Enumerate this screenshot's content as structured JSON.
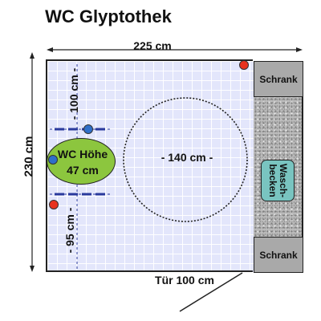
{
  "title": "WC Glyptothek",
  "dimensions": {
    "width": "225 cm",
    "height": "230 cm",
    "door": "Tür 100 cm",
    "turning_circle": "- 140 cm -",
    "clearance_top": "- 100 cm -",
    "clearance_bottom": "- 95 cm -"
  },
  "fixtures": {
    "cabinet_top": "Schrank",
    "cabinet_bottom": "Schrank",
    "basin_line1": "Wasch-",
    "basin_line2": "becken",
    "wc_line1": "WC Höhe",
    "wc_line2": "47 cm"
  },
  "colors": {
    "floor": "#e3e6fb",
    "wc": "#8cc63e",
    "basin": "#79c4c0",
    "cabinet": "#a9a9a9",
    "grab_bar": "#2a3a9c",
    "marker_red": "#e8321e",
    "marker_blue": "#2f6fc9"
  }
}
